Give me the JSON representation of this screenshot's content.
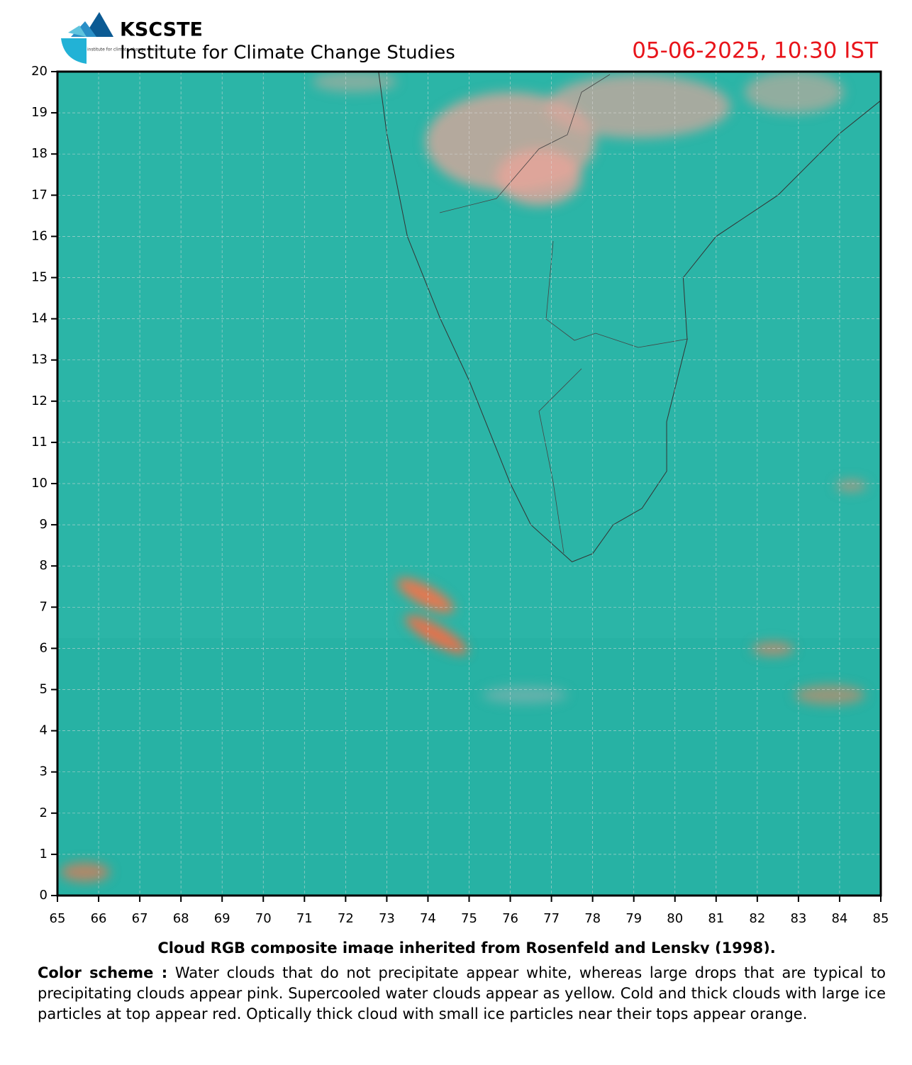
{
  "header": {
    "org": "KSCSTE",
    "institute": "Institute for Climate Change Studies",
    "logo_text": "institute for climate change studies",
    "timestamp": "05-06-2025, 10:30 IST"
  },
  "map": {
    "xlim": [
      65,
      85
    ],
    "ylim": [
      0,
      20
    ],
    "xticks": [
      65,
      66,
      67,
      68,
      69,
      70,
      71,
      72,
      73,
      74,
      75,
      76,
      77,
      78,
      79,
      80,
      81,
      82,
      83,
      84,
      85
    ],
    "yticks": [
      0,
      1,
      2,
      3,
      4,
      5,
      6,
      7,
      8,
      9,
      10,
      11,
      12,
      13,
      14,
      15,
      16,
      17,
      18,
      19,
      20
    ],
    "grid": true
  },
  "caption": {
    "title": "Cloud RGB composite image inherited from Rosenfeld and Lensky (1998).",
    "label": "Color scheme :",
    "text": "Water clouds that do not precipitate appear white, whereas large drops that are typical to precipitating clouds appear pink. Supercooled water clouds appear as yellow. Cold and thick clouds with large ice particles at top appear red. Optically thick cloud with small ice particles near their tops appear orange."
  }
}
